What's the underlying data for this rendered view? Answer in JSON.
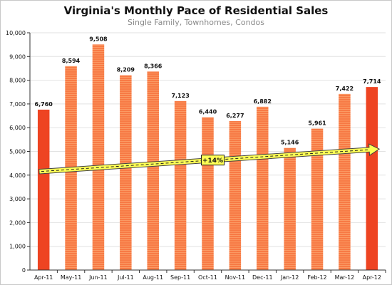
{
  "chart_data": {
    "type": "bar",
    "title": "Virginia's Monthly Pace of Residential Sales",
    "subtitle": "Single Family, Townhomes, Condos",
    "categories": [
      "Apr-11",
      "May-11",
      "Jun-11",
      "Jul-11",
      "Aug-11",
      "Sep-11",
      "Oct-11",
      "Nov-11",
      "Dec-11",
      "Jan-12",
      "Feb-12",
      "Mar-12",
      "Apr-12"
    ],
    "values": [
      6760,
      8594,
      9508,
      8209,
      8366,
      7123,
      6440,
      6277,
      6882,
      5146,
      5961,
      7422,
      7714
    ],
    "data_labels": [
      "6,760",
      "8,594",
      "9,508",
      "8,209",
      "8,366",
      "7,123",
      "6,440",
      "6,277",
      "6,882",
      "5,146",
      "5,961",
      "7,422",
      "7,714"
    ],
    "highlighted_categories": [
      "Apr-11",
      "Apr-12"
    ],
    "ylim": [
      0,
      10000
    ],
    "yticks": [
      0,
      1000,
      2000,
      3000,
      4000,
      5000,
      6000,
      7000,
      8000,
      9000,
      10000
    ],
    "ytick_labels": [
      "0",
      "1,000",
      "2,000",
      "3,000",
      "4,000",
      "5,000",
      "6,000",
      "7,000",
      "8,000",
      "9,000",
      "10,000"
    ],
    "grid": true,
    "trend": {
      "start_category": "Apr-11",
      "end_category": "Apr-12",
      "start_value": 4150,
      "end_value": 5100,
      "label": "+14%"
    },
    "colors": {
      "highlight_bar": "#ee4422",
      "bar": "#f77a45",
      "bar_stripe": "#fb9a64",
      "grid": "#e2e2e2",
      "trend_fill": "#ffff55",
      "trend_border": "#444444"
    }
  }
}
